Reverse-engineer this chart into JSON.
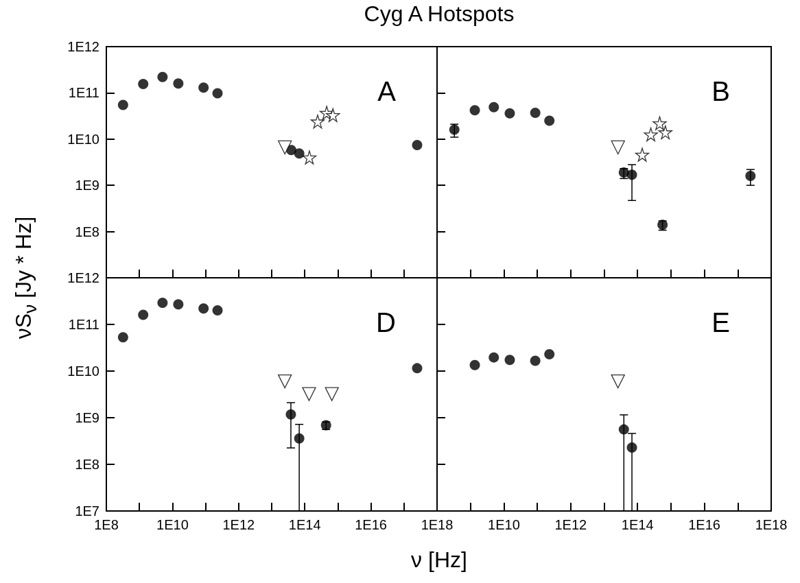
{
  "chart_data": [
    {
      "type": "scatter",
      "title": "Cyg A Hotspots",
      "ylabel": "νS$_{ν}$   [Jy * Hz]",
      "annotations": [
        "A"
      ],
      "log": "xy",
      "tick_labels": "y",
      "xlim": [
        100000000.0,
        1e+18
      ],
      "xticks": [
        {
          "value": 100000000.0,
          "label": null
        },
        {
          "value": 1000000000.0,
          "label": null
        },
        {
          "value": 10000000000.0,
          "label": null
        },
        {
          "value": 100000000000.0,
          "label": null
        },
        {
          "value": 1000000000000.0,
          "label": null
        },
        {
          "value": 10000000000000.0,
          "label": null
        },
        {
          "value": 100000000000000.0,
          "label": null
        },
        {
          "value": 1000000000000000.0,
          "label": null
        },
        {
          "value": 1e+16,
          "label": null
        },
        {
          "value": 1e+17,
          "label": null
        },
        {
          "value": 1e+18,
          "label": null
        }
      ],
      "ylim": [
        10000000.0,
        1000000000000.0
      ],
      "yticks": [
        {
          "value": 10000000.0,
          "label": null
        },
        {
          "value": 100000000.0,
          "label": "1E8"
        },
        {
          "value": 1000000000.0,
          "label": "1E9"
        },
        {
          "value": 10000000000.0,
          "label": "1E10"
        },
        {
          "value": 100000000000.0,
          "label": "1E11"
        },
        {
          "value": 1000000000000.0,
          "label": "1E12"
        }
      ],
      "series": [
        {
          "color": "#000000",
          "marker": "circle",
          "x": [
            320000000.0,
            1300000000.0,
            5000000000.0,
            15000000000.0,
            87000000000.0,
            230000000000.0,
            39000000000000.0,
            68000000000000.0,
            2.5e+17
          ],
          "values": [
            55000000000.0,
            155000000000.0,
            220000000000.0,
            160000000000.0,
            130000000000.0,
            98000000000.0,
            5800000000.0,
            4900000000.0,
            7400000000.0
          ]
        },
        {
          "color": "#000000",
          "marker": "triangle",
          "x": [
            25000000000000.0
          ],
          "values": [
            6600000000.0
          ]
        },
        {
          "color": "#000000",
          "marker": "star",
          "x": [
            138000000000000.0,
            245000000000000.0,
            460000000000000.0,
            710000000000000.0
          ],
          "values": [
            4000000000.0,
            24000000000.0,
            37000000000.0,
            33000000000.0
          ]
        }
      ]
    },
    {
      "type": "scatter",
      "annotations": [
        "B"
      ],
      "log": "xy",
      "tick_labels": false,
      "xlim": [
        100000000.0,
        1e+18
      ],
      "xticks": [
        {
          "value": 100000000.0,
          "label": null
        },
        {
          "value": 1000000000.0,
          "label": null
        },
        {
          "value": 10000000000.0,
          "label": null
        },
        {
          "value": 100000000000.0,
          "label": null
        },
        {
          "value": 1000000000000.0,
          "label": null
        },
        {
          "value": 10000000000000.0,
          "label": null
        },
        {
          "value": 100000000000000.0,
          "label": null
        },
        {
          "value": 1000000000000000.0,
          "label": null
        },
        {
          "value": 1e+16,
          "label": null
        },
        {
          "value": 1e+17,
          "label": null
        },
        {
          "value": 1e+18,
          "label": null
        }
      ],
      "ylim": [
        10000000.0,
        1000000000000.0
      ],
      "yticks": [
        {
          "value": 10000000.0,
          "label": null
        },
        {
          "value": 100000000.0,
          "label": null
        },
        {
          "value": 1000000000.0,
          "label": null
        },
        {
          "value": 10000000000.0,
          "label": null
        },
        {
          "value": 100000000000.0,
          "label": null
        },
        {
          "value": 1000000000000.0,
          "label": null
        }
      ],
      "series": [
        {
          "color": "#000000",
          "marker": "circle",
          "x": [
            330000000.0,
            1350000000.0,
            5000000000.0,
            15000000000.0,
            87000000000.0,
            230000000000.0,
            39000000000000.0,
            68000000000000.0,
            560000000000000.0,
            2.4e+17
          ],
          "values": [
            16000000000.0,
            42000000000.0,
            49000000000.0,
            36000000000.0,
            37000000000.0,
            25000000000.0,
            1900000000.0,
            1700000000.0,
            140000000.0,
            1600000000.0
          ],
          "errors": [
            5000000000.0,
            null,
            null,
            null,
            null,
            null,
            [
              1400000000.0,
              2300000000.0
            ],
            [
              470000000.0,
              2800000000.0
            ],
            [
              107000000.0,
              170000000.0
            ],
            600000000.0
          ]
        },
        {
          "color": "#000000",
          "marker": "triangle",
          "x": [
            26000000000000.0
          ],
          "values": [
            6600000000.0
          ]
        },
        {
          "color": "#000000",
          "marker": "star",
          "x": [
            138000000000000.0,
            250000000000000.0,
            460000000000000.0,
            680000000000000.0
          ],
          "values": [
            4600000000.0,
            12600000000.0,
            22000000000.0,
            14000000000.0
          ]
        }
      ]
    },
    {
      "type": "scatter",
      "xlabel": "ν   [Hz]",
      "annotations": [
        "D"
      ],
      "log": "xy",
      "xlim": [
        100000000.0,
        1e+18
      ],
      "xticks": [
        {
          "value": 100000000.0,
          "label": "1E8"
        },
        {
          "value": 1000000000.0,
          "label": null
        },
        {
          "value": 10000000000.0,
          "label": "1E10"
        },
        {
          "value": 100000000000.0,
          "label": null
        },
        {
          "value": 1000000000000.0,
          "label": "1E12"
        },
        {
          "value": 10000000000000.0,
          "label": null
        },
        {
          "value": 100000000000000.0,
          "label": "1E14"
        },
        {
          "value": 1000000000000000.0,
          "label": null
        },
        {
          "value": 1e+16,
          "label": "1E16"
        },
        {
          "value": 1e+17,
          "label": null
        },
        {
          "value": 1e+18,
          "label": "1E18"
        }
      ],
      "ylim": [
        10000000.0,
        1000000000000.0
      ],
      "yticks": [
        {
          "value": 10000000.0,
          "label": "1E7"
        },
        {
          "value": 100000000.0,
          "label": "1E8"
        },
        {
          "value": 1000000000.0,
          "label": "1E9"
        },
        {
          "value": 10000000000.0,
          "label": "1E10"
        },
        {
          "value": 100000000000.0,
          "label": "1E11"
        },
        {
          "value": 1000000000000.0,
          "label": "1E12"
        }
      ],
      "series": [
        {
          "color": "#000000",
          "marker": "circle",
          "x": [
            320000000.0,
            1300000000.0,
            5000000000.0,
            15000000000.0,
            87000000000.0,
            230000000000.0,
            38000000000000.0,
            68000000000000.0,
            440000000000000.0,
            2.5e+17
          ],
          "values": [
            53000000000.0,
            160000000000.0,
            290000000000.0,
            270000000000.0,
            220000000000.0,
            200000000000.0,
            1170000000.0,
            360000000.0,
            690000000.0,
            11500000000.0
          ],
          "errors": [
            null,
            null,
            null,
            null,
            null,
            null,
            [
              225000000.0,
              2100000000.0
            ],
            [
              10000000.0,
              720000000.0
            ],
            [
              560000000.0,
              810000000.0
            ],
            null
          ]
        },
        {
          "color": "#000000",
          "marker": "triangle",
          "x": [
            25000000000000.0,
            135000000000000.0,
            660000000000000.0
          ],
          "values": [
            6000000000.0,
            3200000000.0,
            3200000000.0
          ]
        }
      ]
    },
    {
      "type": "scatter",
      "annotations": [
        "E"
      ],
      "log": "xy",
      "tick_labels": "x",
      "xlim": [
        100000000.0,
        1e+18
      ],
      "xticks": [
        {
          "value": 100000000.0,
          "label": null
        },
        {
          "value": 1000000000.0,
          "label": null
        },
        {
          "value": 10000000000.0,
          "label": "1E10"
        },
        {
          "value": 100000000000.0,
          "label": null
        },
        {
          "value": 1000000000000.0,
          "label": "1E12"
        },
        {
          "value": 10000000000000.0,
          "label": null
        },
        {
          "value": 100000000000000.0,
          "label": "1E14"
        },
        {
          "value": 1000000000000000.0,
          "label": null
        },
        {
          "value": 1e+16,
          "label": "1E16"
        },
        {
          "value": 1e+17,
          "label": null
        },
        {
          "value": 1e+18,
          "label": "1E18"
        }
      ],
      "ylim": [
        10000000.0,
        1000000000000.0
      ],
      "yticks": [
        {
          "value": 10000000.0,
          "label": null
        },
        {
          "value": 100000000.0,
          "label": null
        },
        {
          "value": 1000000000.0,
          "label": null
        },
        {
          "value": 10000000000.0,
          "label": null
        },
        {
          "value": 100000000000.0,
          "label": null
        },
        {
          "value": 1000000000000.0,
          "label": null
        }
      ],
      "series": [
        {
          "color": "#000000",
          "marker": "circle",
          "x": [
            1350000000.0,
            5000000000.0,
            15000000000.0,
            87000000000.0,
            230000000000.0,
            39000000000000.0,
            68000000000000.0
          ],
          "values": [
            13500000000.0,
            19600000000.0,
            17300000000.0,
            16600000000.0,
            23000000000.0,
            560000000.0,
            230000000.0
          ],
          "errors": [
            null,
            null,
            null,
            null,
            null,
            [
              10000000.0,
              1150000000.0
            ],
            [
              10000000.0,
              460000000.0
            ]
          ]
        },
        {
          "color": "#000000",
          "marker": "triangle",
          "x": [
            26000000000000.0
          ],
          "values": [
            6000000000.0
          ]
        }
      ]
    }
  ]
}
